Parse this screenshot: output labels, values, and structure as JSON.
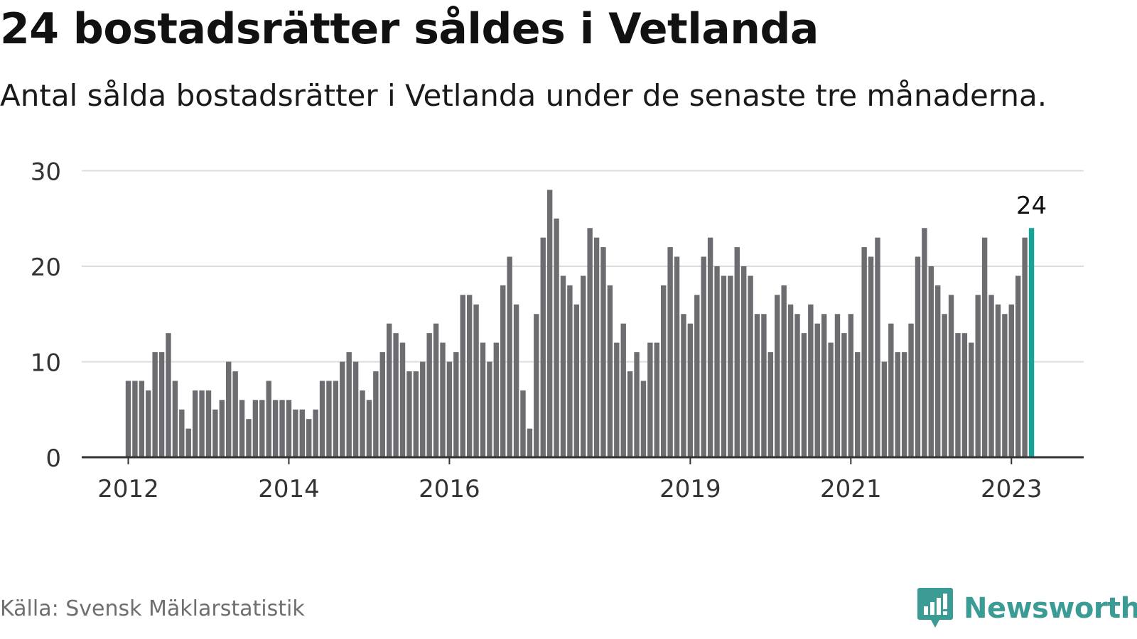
{
  "title": "24 bostadsrätter såldes i Vetlanda",
  "subtitle": "Antal sålda bostadsrätter i Vetlanda under de senaste tre månaderna.",
  "source": "Källa: Svensk Mäklarstatistik",
  "brand": {
    "name": "Newsworthy",
    "icon": "newsworthy-logo-icon"
  },
  "colors": {
    "bar": "#6d6c71",
    "highlight": "#17a398",
    "grid": "#dddddd",
    "axis": "#333333",
    "brand": "#3a9c95"
  },
  "chart_data": {
    "type": "bar",
    "xlabel": "",
    "ylabel": "",
    "ylim": [
      0,
      30
    ],
    "yticks": [
      0,
      10,
      20,
      30
    ],
    "xticks": [
      {
        "label": "2012",
        "index": 0
      },
      {
        "label": "2014",
        "index": 24
      },
      {
        "label": "2016",
        "index": 48
      },
      {
        "label": "2019",
        "index": 84
      },
      {
        "label": "2021",
        "index": 108
      },
      {
        "label": "2023",
        "index": 132
      }
    ],
    "start": "2012-01",
    "highlight_index": 135,
    "highlight_label": "24",
    "grid": true,
    "values": [
      8,
      8,
      8,
      7,
      11,
      11,
      13,
      8,
      5,
      3,
      7,
      7,
      7,
      5,
      6,
      10,
      9,
      6,
      4,
      6,
      6,
      8,
      6,
      6,
      6,
      5,
      5,
      4,
      5,
      8,
      8,
      8,
      10,
      11,
      10,
      7,
      6,
      9,
      11,
      14,
      13,
      12,
      9,
      9,
      10,
      13,
      14,
      12,
      10,
      11,
      17,
      17,
      16,
      12,
      10,
      12,
      18,
      21,
      16,
      7,
      3,
      15,
      23,
      28,
      25,
      19,
      18,
      16,
      19,
      24,
      23,
      22,
      18,
      12,
      14,
      9,
      11,
      8,
      12,
      12,
      18,
      22,
      21,
      15,
      14,
      17,
      21,
      23,
      20,
      19,
      19,
      22,
      20,
      19,
      15,
      15,
      11,
      17,
      18,
      16,
      15,
      13,
      16,
      14,
      15,
      12,
      15,
      13,
      15,
      11,
      22,
      21,
      23,
      10,
      14,
      11,
      11,
      14,
      21,
      24,
      20,
      18,
      15,
      17,
      13,
      13,
      12,
      17,
      23,
      17,
      16,
      15,
      16,
      19,
      23,
      24
    ]
  }
}
